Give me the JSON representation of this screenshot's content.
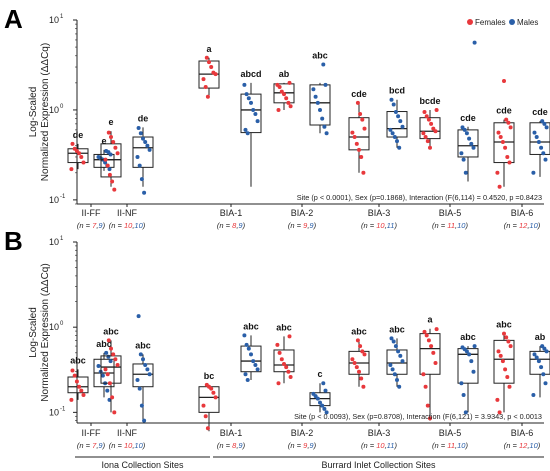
{
  "colors": {
    "female": "#e8383c",
    "male": "#2a5fa8",
    "box": "#222222"
  },
  "legend": [
    {
      "key": "female",
      "label": "Females"
    },
    {
      "key": "male",
      "label": "Males"
    }
  ],
  "chart_data": [
    {
      "type": "box",
      "panel_label": "A",
      "ylabel_line1": "Log-Scaled",
      "ylabel_line2": "Normalized Expression (ΔΔCq)",
      "yscale": "log",
      "ylim": [
        0.09,
        10
      ],
      "yticks": [
        {
          "value": 0.1,
          "exp": "-1"
        },
        {
          "value": 1,
          "exp": "0"
        },
        {
          "value": 10,
          "exp": "1"
        }
      ],
      "stat_text": "Site (p < 0.0001), Sex (p=0.1868), Interaction (F(6,114) = 0.4520, p =0.8423",
      "categories": [
        "II-FF",
        "II-NF",
        "BIA-1",
        "BIA-2",
        "BIA-3",
        "BIA-5",
        "BIA-6"
      ],
      "n": [
        {
          "f": "7",
          "m": "9"
        },
        {
          "f": "10",
          "m": "10"
        },
        {
          "f": "8",
          "m": "9"
        },
        {
          "f": "9",
          "m": "9"
        },
        {
          "f": "10",
          "m": "11"
        },
        {
          "f": "11",
          "m": "10"
        },
        {
          "f": "12",
          "m": "10"
        }
      ],
      "boxes": [
        {
          "sex": "female",
          "min": 0.22,
          "q1": 0.26,
          "median": 0.33,
          "q3": 0.37,
          "max": 0.42,
          "letter": "de",
          "points": [
            0.22,
            0.26,
            0.3,
            0.33,
            0.35,
            0.37,
            0.42
          ]
        },
        {
          "sex": "male",
          "min": 0.21,
          "q1": 0.23,
          "median": 0.28,
          "q3": 0.32,
          "max": 0.36,
          "letter": "e",
          "points": [
            0.22,
            0.24,
            0.26,
            0.28,
            0.29,
            0.3,
            0.32,
            0.34,
            0.35
          ]
        },
        {
          "sex": "female",
          "min": 0.14,
          "q1": 0.18,
          "median": 0.28,
          "q3": 0.42,
          "max": 0.58,
          "letter": "e",
          "points": [
            0.13,
            0.16,
            0.19,
            0.24,
            0.28,
            0.33,
            0.38,
            0.44,
            0.5,
            0.56
          ]
        },
        {
          "sex": "male",
          "min": 0.14,
          "q1": 0.23,
          "median": 0.38,
          "q3": 0.5,
          "max": 0.64,
          "letter": "de",
          "points": [
            0.12,
            0.17,
            0.24,
            0.3,
            0.36,
            0.4,
            0.44,
            0.48,
            0.55,
            0.63
          ]
        },
        {
          "sex": "female",
          "min": 1.4,
          "q1": 1.75,
          "median": 2.5,
          "q3": 3.5,
          "max": 3.8,
          "letter": "a",
          "points": [
            1.4,
            1.8,
            2.2,
            2.5,
            2.6,
            3.0,
            3.4,
            3.8
          ]
        },
        {
          "sex": "male",
          "min": 0.14,
          "q1": 0.56,
          "median": 1.0,
          "q3": 1.5,
          "max": 2.0,
          "letter": "abcd",
          "points": [
            0.55,
            0.6,
            0.75,
            0.9,
            1.0,
            1.2,
            1.35,
            1.5,
            1.9
          ]
        },
        {
          "sex": "female",
          "min": 1.0,
          "q1": 1.2,
          "median": 1.55,
          "q3": 1.95,
          "max": 2.0,
          "letter": "ab",
          "points": [
            1.0,
            1.1,
            1.2,
            1.35,
            1.5,
            1.6,
            1.8,
            1.9,
            2.0
          ]
        },
        {
          "sex": "male",
          "min": 0.55,
          "q1": 0.68,
          "median": 1.2,
          "q3": 1.9,
          "max": 2.0,
          "letter": "abc",
          "points": [
            0.55,
            0.65,
            0.8,
            1.0,
            1.2,
            1.4,
            1.7,
            1.9,
            3.2
          ]
        },
        {
          "sex": "female",
          "min": 0.2,
          "q1": 0.36,
          "median": 0.5,
          "q3": 0.82,
          "max": 1.2,
          "letter": "cde",
          "points": [
            0.2,
            0.3,
            0.36,
            0.42,
            0.5,
            0.56,
            0.62,
            0.78,
            0.9,
            1.2
          ]
        },
        {
          "sex": "male",
          "min": 0.38,
          "q1": 0.5,
          "median": 0.62,
          "q3": 0.96,
          "max": 1.3,
          "letter": "bcd",
          "points": [
            0.38,
            0.45,
            0.5,
            0.55,
            0.6,
            0.65,
            0.75,
            0.85,
            0.95,
            1.15,
            1.3
          ]
        },
        {
          "sex": "female",
          "min": 0.38,
          "q1": 0.48,
          "median": 0.58,
          "q3": 0.82,
          "max": 1.0,
          "letter": "bcde",
          "points": [
            0.38,
            0.45,
            0.5,
            0.55,
            0.58,
            0.62,
            0.7,
            0.78,
            0.85,
            0.95,
            1.0
          ]
        },
        {
          "sex": "male",
          "min": 0.16,
          "q1": 0.3,
          "median": 0.4,
          "q3": 0.6,
          "max": 0.65,
          "letter": "cde",
          "points": [
            0.2,
            0.28,
            0.33,
            0.38,
            0.42,
            0.48,
            0.55,
            0.6,
            0.64,
            5.6
          ]
        },
        {
          "sex": "female",
          "min": 0.14,
          "q1": 0.26,
          "median": 0.44,
          "q3": 0.72,
          "max": 0.78,
          "letter": "cde",
          "points": [
            0.14,
            0.2,
            0.26,
            0.3,
            0.38,
            0.44,
            0.5,
            0.56,
            0.64,
            0.72,
            0.78,
            2.1
          ]
        },
        {
          "sex": "male",
          "min": 0.18,
          "q1": 0.32,
          "median": 0.44,
          "q3": 0.72,
          "max": 0.75,
          "letter": "cde",
          "points": [
            0.2,
            0.28,
            0.33,
            0.38,
            0.44,
            0.5,
            0.56,
            0.64,
            0.7,
            0.75
          ]
        }
      ]
    },
    {
      "type": "box",
      "panel_label": "B",
      "ylabel_line1": "Log-Scaled",
      "ylabel_line2": "Normalized Expression (ΔΔCq)",
      "yscale": "log",
      "ylim": [
        0.075,
        10
      ],
      "yticks": [
        {
          "value": 0.1,
          "exp": "-1"
        },
        {
          "value": 1,
          "exp": "0"
        },
        {
          "value": 10,
          "exp": "1"
        }
      ],
      "stat_text": "Site (p < 0.0093), Sex (p=0.8708), Interaction (F(6,121) = 3.9343, p < 0.0013",
      "categories": [
        "II-FF",
        "II-NF",
        "BIA-1",
        "BIA-2",
        "BIA-3",
        "BIA-5",
        "BIA-6"
      ],
      "n": [
        {
          "f": "7",
          "m": "9"
        },
        {
          "f": "10",
          "m": "10"
        },
        {
          "f": "8",
          "m": "9"
        },
        {
          "f": "9",
          "m": "9"
        },
        {
          "f": "10",
          "m": "11"
        },
        {
          "f": "11",
          "m": "10"
        },
        {
          "f": "12",
          "m": "10"
        }
      ],
      "boxes": [
        {
          "sex": "female",
          "min": 0.14,
          "q1": 0.17,
          "median": 0.2,
          "q3": 0.26,
          "max": 0.32,
          "letter": "abc",
          "points": [
            0.14,
            0.16,
            0.18,
            0.2,
            0.23,
            0.27,
            0.31
          ]
        },
        {
          "sex": "male",
          "min": 0.15,
          "q1": 0.2,
          "median": 0.29,
          "q3": 0.42,
          "max": 0.5,
          "letter": "abc",
          "points": [
            0.14,
            0.18,
            0.22,
            0.27,
            0.3,
            0.35,
            0.4,
            0.45,
            0.5
          ]
        },
        {
          "sex": "female",
          "min": 0.1,
          "q1": 0.22,
          "median": 0.34,
          "q3": 0.46,
          "max": 0.7,
          "letter": "abc",
          "points": [
            0.1,
            0.15,
            0.22,
            0.28,
            0.32,
            0.36,
            0.42,
            0.48,
            0.56,
            0.7
          ]
        },
        {
          "sex": "male",
          "min": 0.08,
          "q1": 0.2,
          "median": 0.28,
          "q3": 0.37,
          "max": 0.48,
          "letter": "abc",
          "points": [
            0.08,
            0.12,
            0.19,
            0.24,
            0.28,
            0.32,
            0.36,
            0.42,
            0.48,
            1.35
          ]
        },
        {
          "sex": "female",
          "min": 0.06,
          "q1": 0.1,
          "median": 0.15,
          "q3": 0.2,
          "max": 0.21,
          "letter": "bc",
          "points": [
            0.065,
            0.09,
            0.12,
            0.15,
            0.17,
            0.19,
            0.2,
            0.21
          ]
        },
        {
          "sex": "male",
          "min": 0.24,
          "q1": 0.3,
          "median": 0.4,
          "q3": 0.6,
          "max": 0.8,
          "letter": "abc",
          "points": [
            0.24,
            0.28,
            0.32,
            0.36,
            0.4,
            0.48,
            0.56,
            0.62,
            0.8
          ]
        },
        {
          "sex": "female",
          "min": 0.22,
          "q1": 0.3,
          "median": 0.36,
          "q3": 0.54,
          "max": 0.78,
          "letter": "abc",
          "points": [
            0.22,
            0.26,
            0.3,
            0.34,
            0.37,
            0.42,
            0.5,
            0.62,
            0.78
          ]
        },
        {
          "sex": "male",
          "min": 0.1,
          "q1": 0.12,
          "median": 0.145,
          "q3": 0.17,
          "max": 0.22,
          "letter": "c",
          "points": [
            0.1,
            0.11,
            0.12,
            0.13,
            0.145,
            0.155,
            0.165,
            0.18,
            0.22
          ]
        },
        {
          "sex": "female",
          "min": 0.2,
          "q1": 0.28,
          "median": 0.38,
          "q3": 0.52,
          "max": 0.7,
          "letter": "abc",
          "points": [
            0.2,
            0.25,
            0.3,
            0.34,
            0.38,
            0.42,
            0.48,
            0.52,
            0.6,
            0.7
          ]
        },
        {
          "sex": "male",
          "min": 0.2,
          "q1": 0.28,
          "median": 0.38,
          "q3": 0.54,
          "max": 0.74,
          "letter": "abc",
          "points": [
            0.2,
            0.24,
            0.28,
            0.32,
            0.36,
            0.4,
            0.46,
            0.52,
            0.6,
            0.68,
            0.74
          ]
        },
        {
          "sex": "female",
          "min": 0.08,
          "q1": 0.28,
          "median": 0.56,
          "q3": 0.84,
          "max": 0.96,
          "letter": "a",
          "points": [
            0.085,
            0.12,
            0.2,
            0.28,
            0.38,
            0.5,
            0.6,
            0.7,
            0.8,
            0.88,
            0.95
          ]
        },
        {
          "sex": "male",
          "min": 0.1,
          "q1": 0.22,
          "median": 0.48,
          "q3": 0.56,
          "max": 0.6,
          "letter": "abc",
          "points": [
            0.1,
            0.16,
            0.22,
            0.3,
            0.4,
            0.48,
            0.52,
            0.55,
            0.58,
            0.6
          ]
        },
        {
          "sex": "female",
          "min": 0.1,
          "q1": 0.22,
          "median": 0.42,
          "q3": 0.7,
          "max": 0.84,
          "letter": "abc",
          "points": [
            0.1,
            0.14,
            0.2,
            0.26,
            0.32,
            0.4,
            0.46,
            0.52,
            0.6,
            0.68,
            0.76,
            0.84
          ]
        },
        {
          "sex": "male",
          "min": 0.15,
          "q1": 0.28,
          "median": 0.42,
          "q3": 0.52,
          "max": 0.6,
          "letter": "ab",
          "points": [
            0.16,
            0.22,
            0.28,
            0.34,
            0.4,
            0.44,
            0.48,
            0.52,
            0.56,
            0.6
          ]
        }
      ]
    }
  ],
  "groups": [
    {
      "label": "Iona Collection Sites",
      "span": [
        0,
        1
      ]
    },
    {
      "label": "Burrard Inlet Collection Sites",
      "span": [
        2,
        6
      ]
    }
  ]
}
